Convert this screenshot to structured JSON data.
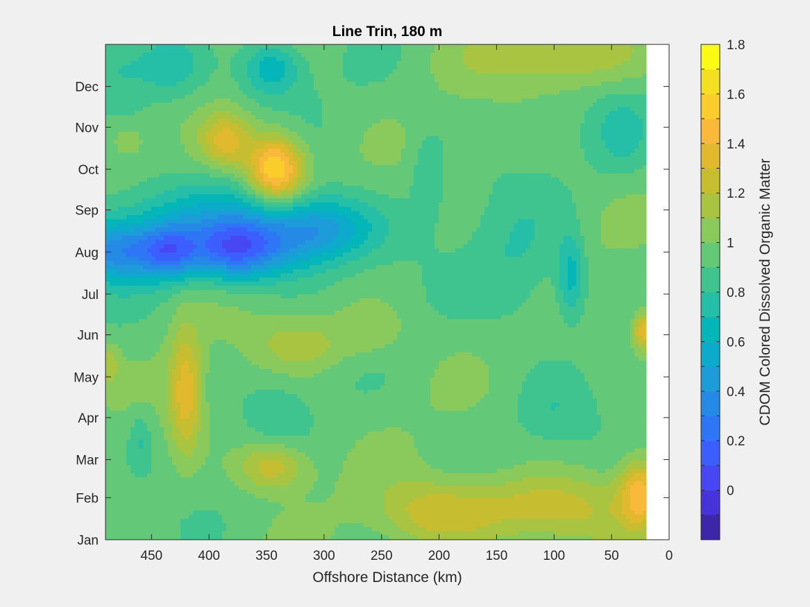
{
  "chart_data": {
    "type": "heatmap",
    "title": "Line Trin, 180 m",
    "xlabel": "Offshore Distance (km)",
    "ylabel": "",
    "colorbar_label": "CDOM Colored Dissolved Organic Matter",
    "xlim": [
      490,
      0
    ],
    "x_reversed": true,
    "x_ticks": [
      450,
      400,
      350,
      300,
      250,
      200,
      150,
      100,
      50,
      0
    ],
    "y_ticks": [
      "Jan",
      "Feb",
      "Mar",
      "Apr",
      "May",
      "Jun",
      "Jul",
      "Aug",
      "Sep",
      "Oct",
      "Nov",
      "Dec"
    ],
    "y_tick_days": [
      1,
      32,
      60,
      91,
      121,
      152,
      182,
      213,
      244,
      274,
      305,
      335
    ],
    "ylim_days": [
      1,
      366
    ],
    "data_x_extent_km": [
      490,
      20
    ],
    "clim": [
      -0.2,
      1.8
    ],
    "colorbar_ticks": [
      0,
      0.2,
      0.4,
      0.6,
      0.8,
      1,
      1.2,
      1.4,
      1.6,
      1.8
    ],
    "colorbar_levels": [
      -0.2,
      -0.1,
      0,
      0.1,
      0.2,
      0.3,
      0.4,
      0.5,
      0.6,
      0.7,
      0.8,
      0.9,
      1.0,
      1.1,
      1.2,
      1.3,
      1.4,
      1.5,
      1.6,
      1.7,
      1.8
    ],
    "colormap": [
      "#3e26a8",
      "#4633d9",
      "#4748f4",
      "#3c5efe",
      "#2e76f6",
      "#248ae6",
      "#1d9cd9",
      "#0dabcb",
      "#05b6b9",
      "#25bea6",
      "#3fc490",
      "#63c878",
      "#8ac95c",
      "#a8c441",
      "#c6be30",
      "#e1b92e",
      "#f9b93b",
      "#fbcd2c",
      "#f4e022",
      "#f9fb15"
    ],
    "background_value": 0.95,
    "features": [
      {
        "x": 480,
        "y": 213,
        "sx": 35,
        "sy": 22,
        "a": -0.55
      },
      {
        "x": 435,
        "y": 213,
        "sx": 25,
        "sy": 20,
        "a": -0.55
      },
      {
        "x": 380,
        "y": 213,
        "sx": 40,
        "sy": 22,
        "a": -0.6
      },
      {
        "x": 330,
        "y": 220,
        "sx": 60,
        "sy": 25,
        "a": -0.35
      },
      {
        "x": 300,
        "y": 232,
        "sx": 45,
        "sy": 22,
        "a": -0.25
      },
      {
        "x": 395,
        "y": 240,
        "sx": 110,
        "sy": 25,
        "a": -0.25
      },
      {
        "x": 342,
        "y": 274,
        "sx": 24,
        "sy": 25,
        "a": 0.72
      },
      {
        "x": 385,
        "y": 295,
        "sx": 22,
        "sy": 20,
        "a": 0.38
      },
      {
        "x": 345,
        "y": 348,
        "sx": 25,
        "sy": 20,
        "a": -0.35
      },
      {
        "x": 435,
        "y": 350,
        "sx": 30,
        "sy": 25,
        "a": -0.25
      },
      {
        "x": 478,
        "y": 345,
        "sx": 25,
        "sy": 30,
        "a": -0.15
      },
      {
        "x": 420,
        "y": 110,
        "sx": 14,
        "sy": 45,
        "a": 0.42
      },
      {
        "x": 345,
        "y": 55,
        "sx": 30,
        "sy": 18,
        "a": 0.35
      },
      {
        "x": 205,
        "y": 20,
        "sx": 50,
        "sy": 25,
        "a": 0.3
      },
      {
        "x": 110,
        "y": 25,
        "sx": 70,
        "sy": 25,
        "a": 0.32
      },
      {
        "x": 25,
        "y": 35,
        "sx": 18,
        "sy": 25,
        "a": 0.45
      },
      {
        "x": 22,
        "y": 155,
        "sx": 10,
        "sy": 15,
        "a": 0.45
      },
      {
        "x": 95,
        "y": 360,
        "sx": 80,
        "sy": 25,
        "a": 0.25
      },
      {
        "x": 320,
        "y": 145,
        "sx": 40,
        "sy": 20,
        "a": 0.22
      },
      {
        "x": 260,
        "y": 155,
        "sx": 30,
        "sy": 20,
        "a": 0.15
      },
      {
        "x": 488,
        "y": 130,
        "sx": 10,
        "sy": 15,
        "a": 0.2
      },
      {
        "x": 470,
        "y": 295,
        "sx": 12,
        "sy": 10,
        "a": 0.15
      },
      {
        "x": 85,
        "y": 195,
        "sx": 12,
        "sy": 30,
        "a": -0.3
      },
      {
        "x": 130,
        "y": 200,
        "sx": 40,
        "sy": 50,
        "a": -0.15
      },
      {
        "x": 210,
        "y": 270,
        "sx": 15,
        "sy": 35,
        "a": -0.15
      },
      {
        "x": 100,
        "y": 95,
        "sx": 30,
        "sy": 25,
        "a": -0.1
      },
      {
        "x": 340,
        "y": 95,
        "sx": 25,
        "sy": 25,
        "a": -0.1
      },
      {
        "x": 40,
        "y": 300,
        "sx": 25,
        "sy": 30,
        "a": -0.15
      },
      {
        "x": 460,
        "y": 75,
        "sx": 10,
        "sy": 20,
        "a": -0.15
      }
    ]
  }
}
